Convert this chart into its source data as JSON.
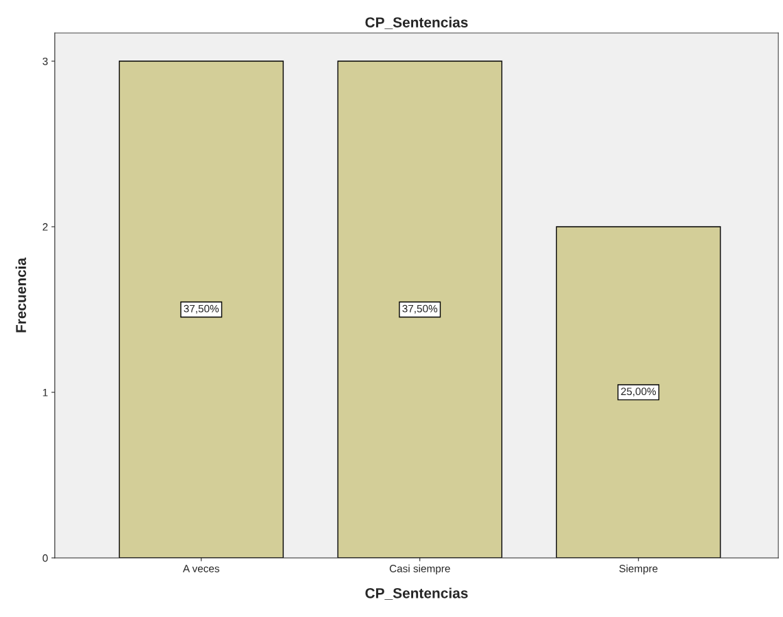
{
  "chart_data": {
    "type": "bar",
    "title": "CP_Sentencias",
    "xlabel": "CP_Sentencias",
    "ylabel": "Frecuencia",
    "categories": [
      "A veces",
      "Casi siempre",
      "Siempre"
    ],
    "values": [
      3,
      3,
      2
    ],
    "color": "#d3ce98",
    "annotations": [
      "37,50%",
      "37,50%",
      "25,00%"
    ],
    "ylim": [
      0,
      3.17
    ],
    "yticks": [
      0,
      1,
      2,
      3
    ],
    "grid": false,
    "legend": false
  }
}
